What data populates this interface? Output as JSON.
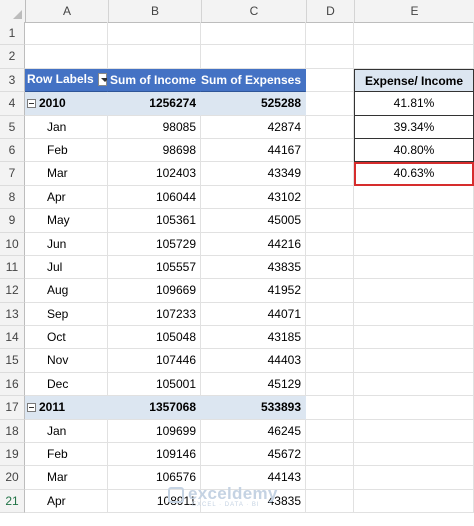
{
  "columns": [
    "A",
    "B",
    "C",
    "D",
    "E"
  ],
  "rows": [
    "1",
    "2",
    "3",
    "4",
    "5",
    "6",
    "7",
    "8",
    "9",
    "10",
    "11",
    "12",
    "13",
    "14",
    "15",
    "16",
    "17",
    "18",
    "19",
    "20",
    "21"
  ],
  "pivot": {
    "header": {
      "row_labels": "Row Labels",
      "income": "Sum of Income",
      "expenses": "Sum of Expenses"
    },
    "lines": [
      {
        "type": "year",
        "label": "2010",
        "income": "1256274",
        "expenses": "525288"
      },
      {
        "type": "month",
        "label": "Jan",
        "income": "98085",
        "expenses": "42874"
      },
      {
        "type": "month",
        "label": "Feb",
        "income": "98698",
        "expenses": "44167"
      },
      {
        "type": "month",
        "label": "Mar",
        "income": "102403",
        "expenses": "43349"
      },
      {
        "type": "month",
        "label": "Apr",
        "income": "106044",
        "expenses": "43102"
      },
      {
        "type": "month",
        "label": "May",
        "income": "105361",
        "expenses": "45005"
      },
      {
        "type": "month",
        "label": "Jun",
        "income": "105729",
        "expenses": "44216"
      },
      {
        "type": "month",
        "label": "Jul",
        "income": "105557",
        "expenses": "43835"
      },
      {
        "type": "month",
        "label": "Aug",
        "income": "109669",
        "expenses": "41952"
      },
      {
        "type": "month",
        "label": "Sep",
        "income": "107233",
        "expenses": "44071"
      },
      {
        "type": "month",
        "label": "Oct",
        "income": "105048",
        "expenses": "43185"
      },
      {
        "type": "month",
        "label": "Nov",
        "income": "107446",
        "expenses": "44403"
      },
      {
        "type": "month",
        "label": "Dec",
        "income": "105001",
        "expenses": "45129"
      },
      {
        "type": "year",
        "label": "2011",
        "income": "1357068",
        "expenses": "533893"
      },
      {
        "type": "month",
        "label": "Jan",
        "income": "109699",
        "expenses": "46245"
      },
      {
        "type": "month",
        "label": "Feb",
        "income": "109146",
        "expenses": "45672"
      },
      {
        "type": "month",
        "label": "Mar",
        "income": "106576",
        "expenses": "44143"
      },
      {
        "type": "month",
        "label": "Apr",
        "income": "108911",
        "expenses": "43835"
      }
    ]
  },
  "ratio": {
    "header": "Expense/ Income",
    "values": [
      "41.81%",
      "39.34%",
      "40.80%",
      "40.63%"
    ]
  },
  "watermark": {
    "name": "exceldemy",
    "tagline": "EXCEL · DATA · BI"
  },
  "colors": {
    "pivot_header": "#4472c4",
    "pivot_band": "#dce6f1",
    "highlight": "#d62d2d"
  }
}
